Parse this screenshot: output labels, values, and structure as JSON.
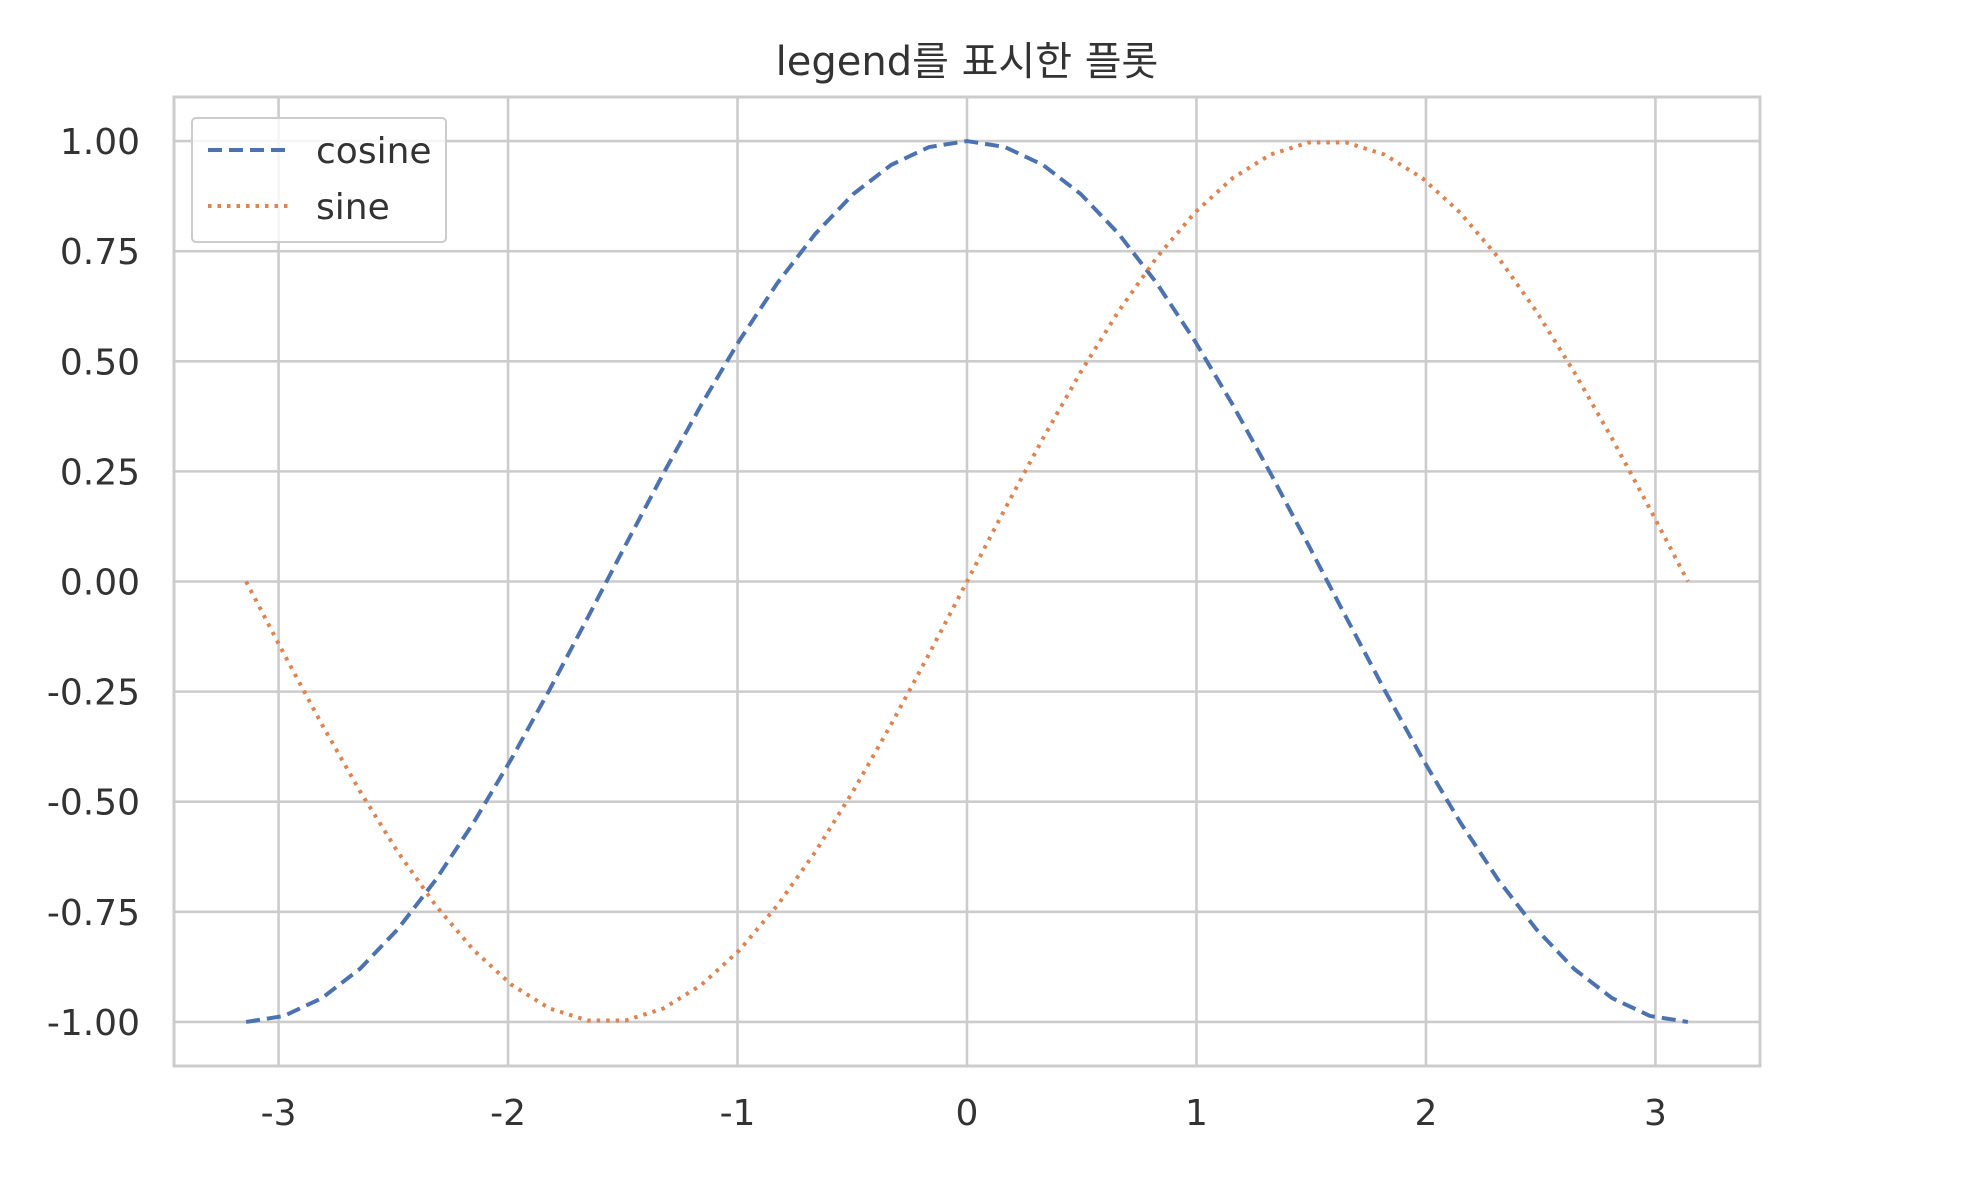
{
  "chart_data": {
    "type": "line",
    "title": "legend를 표시한 플롯",
    "xlabel": "",
    "ylabel": "",
    "xlim": [
      -3.4557,
      3.4557
    ],
    "ylim": [
      -1.1,
      1.1
    ],
    "x_ticks": [
      -3,
      -2,
      -1,
      0,
      1,
      2,
      3
    ],
    "x_tick_labels": [
      "-3",
      "-2",
      "-1",
      "0",
      "1",
      "2",
      "3"
    ],
    "y_ticks": [
      1.0,
      0.75,
      0.5,
      0.25,
      0.0,
      -0.25,
      -0.5,
      -0.75,
      -1.0
    ],
    "y_tick_labels": [
      "1.00",
      "0.75",
      "0.50",
      "0.25",
      "0.00",
      "-0.25",
      "-0.50",
      "-0.75",
      "-1.00"
    ],
    "grid": true,
    "legend_position": "upper-left",
    "x": [
      -3.1416,
      -2.9762,
      -2.8109,
      -2.6455,
      -2.4802,
      -2.3149,
      -2.1495,
      -1.9842,
      -1.8188,
      -1.6535,
      -1.4881,
      -1.3228,
      -1.1574,
      -0.9921,
      -0.8267,
      -0.6614,
      -0.496,
      -0.3307,
      -0.1653,
      0.0,
      0.1653,
      0.3307,
      0.496,
      0.6614,
      0.8267,
      0.9921,
      1.1574,
      1.3228,
      1.4881,
      1.6535,
      1.8188,
      1.9842,
      2.1495,
      2.3149,
      2.4802,
      2.6455,
      2.8109,
      2.9762,
      3.1416
    ],
    "series": [
      {
        "name": "cosine",
        "color": "#4c72b0",
        "line_style": "dashed",
        "values": [
          -1.0,
          -0.9864,
          -0.9458,
          -0.8795,
          -0.7891,
          -0.6773,
          -0.5469,
          -0.4017,
          -0.2455,
          -0.0826,
          0.0826,
          0.2455,
          0.4017,
          0.5469,
          0.6773,
          0.7891,
          0.8795,
          0.9458,
          0.9864,
          1.0,
          0.9864,
          0.9458,
          0.8795,
          0.7891,
          0.6773,
          0.5469,
          0.4017,
          0.2455,
          0.0826,
          -0.0826,
          -0.2455,
          -0.4017,
          -0.5469,
          -0.6773,
          -0.7891,
          -0.8795,
          -0.9458,
          -0.9864,
          -1.0
        ]
      },
      {
        "name": "sine",
        "color": "#dd8452",
        "line_style": "dotted",
        "values": [
          0.0,
          -0.1646,
          -0.3247,
          -0.4759,
          -0.6142,
          -0.7357,
          -0.8372,
          -0.9158,
          -0.9694,
          -0.9966,
          -0.9966,
          -0.9694,
          -0.9158,
          -0.8372,
          -0.7357,
          -0.6142,
          -0.4759,
          -0.3247,
          -0.1646,
          0.0,
          0.1646,
          0.3247,
          0.4759,
          0.6142,
          0.7357,
          0.8372,
          0.9158,
          0.9694,
          0.9966,
          0.9966,
          0.9694,
          0.9158,
          0.8372,
          0.7357,
          0.6142,
          0.4759,
          0.3247,
          0.1646,
          0.0
        ]
      }
    ]
  }
}
